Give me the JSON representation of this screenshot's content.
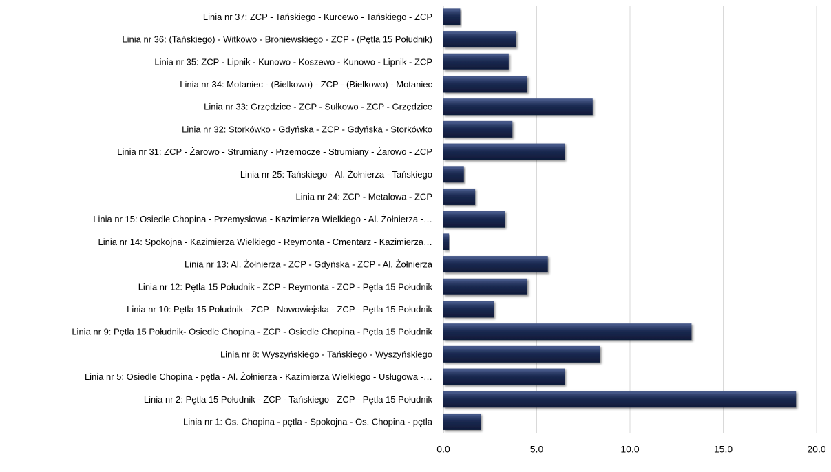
{
  "chart_data": {
    "type": "bar",
    "orientation": "horizontal",
    "categories": [
      "Linia nr 37: ZCP - Tańskiego - Kurcewo - Tańskiego - ZCP",
      "Linia nr 36: (Tańskiego) - Witkowo - Broniewskiego - ZCP - (Pętla 15 Południk)",
      "Linia nr 35: ZCP - Lipnik - Kunowo - Koszewo - Kunowo - Lipnik - ZCP",
      "Linia nr 34: Motaniec - (Bielkowo) - ZCP - (Bielkowo) - Motaniec",
      "Linia nr 33: Grzędzice - ZCP - Sułkowo - ZCP - Grzędzice",
      "Linia nr 32: Storkówko - Gdyńska - ZCP - Gdyńska - Storkówko",
      "Linia nr 31: ZCP - Żarowo - Strumiany - Przemocze - Strumiany - Żarowo - ZCP",
      "Linia nr 25: Tańskiego - Al. Żołnierza - Tańskiego",
      "Linia nr 24: ZCP - Metalowa - ZCP",
      "Linia nr 15: Osiedle Chopina - Przemysłowa - Kazimierza Wielkiego - Al. Żołnierza -…",
      "Linia nr 14: Spokojna - Kazimierza Wielkiego - Reymonta - Cmentarz - Kazimierza…",
      "Linia nr 13: Al. Żołnierza - ZCP - Gdyńska - ZCP - Al. Żołnierza",
      "Linia nr 12: Pętla 15 Południk - ZCP - Reymonta - ZCP - Pętla 15 Południk",
      "Linia nr 10: Pętla 15 Południk - ZCP - Nowowiejska - ZCP - Pętla 15 Południk",
      "Linia nr 9: Pętla 15 Południk- Osiedle Chopina - ZCP - Osiedle Chopina - Pętla 15 Południk",
      "Linia nr 8: Wyszyńskiego - Tańskiego - Wyszyńskiego",
      "Linia nr 5: Osiedle Chopina - pętla - Al. Żołnierza - Kazimierza Wielkiego - Usługowa -…",
      "Linia nr 2: Pętla 15 Południk - ZCP - Tańskiego - ZCP - Pętla 15 Południk",
      "Linia nr 1: Os. Chopina - pętla - Spokojna - Os. Chopina - pętla"
    ],
    "values": [
      0.9,
      3.9,
      3.5,
      4.5,
      8.0,
      3.7,
      6.5,
      1.1,
      1.7,
      3.3,
      0.3,
      5.6,
      4.5,
      2.7,
      13.3,
      8.4,
      6.5,
      18.9,
      2.0
    ],
    "xlim": [
      0,
      20
    ],
    "xticks": [
      "0.0",
      "5.0",
      "10.0",
      "15.0",
      "20.0"
    ],
    "xtick_values": [
      0,
      5,
      10,
      15,
      20
    ],
    "title": "",
    "xlabel": "",
    "ylabel": "",
    "grid": "vertical",
    "legend": "none",
    "bar_color": "#1b2a52",
    "bar_highlight_color": "#4a5c8c",
    "grid_color": "#d9d9d9"
  }
}
